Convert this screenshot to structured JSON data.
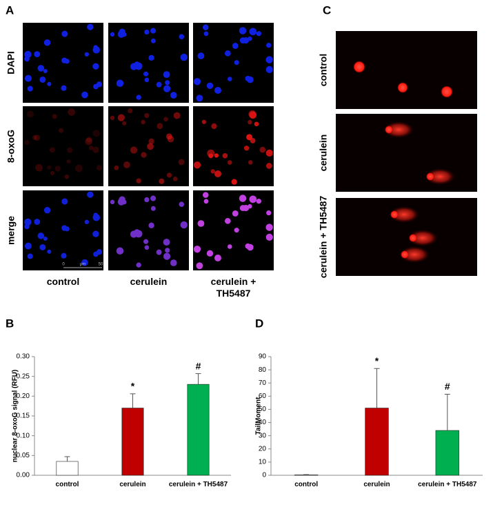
{
  "panel_letters": [
    "A",
    "B",
    "C",
    "D"
  ],
  "microscopy": {
    "row_labels": [
      "DAPI",
      "8-oxoG",
      "merge"
    ],
    "column_labels": [
      "control",
      "cerulein",
      "cerulein + TH5487"
    ],
    "scale_bar": [
      "0",
      "μm",
      "50"
    ]
  },
  "comet": {
    "row_labels": [
      "control",
      "cerulein",
      "cerulein + TH5487"
    ]
  },
  "chart_data": [
    {
      "type": "bar",
      "y_label": "nuclear 8-oxoG signal (RFU)",
      "categories": [
        "control",
        "cerulein",
        "cerulein + TH5487"
      ],
      "values": [
        0.035,
        0.17,
        0.23
      ],
      "errors": [
        0.012,
        0.036,
        0.027
      ],
      "annotations": [
        null,
        "*",
        "#"
      ],
      "colors": [
        "#ffffff",
        "#c00000",
        "#00b050"
      ],
      "ylim": [
        0,
        0.3
      ],
      "yticks": [
        {
          "value": 0,
          "label": "0.00"
        },
        {
          "value": 0.05,
          "label": "0.05"
        },
        {
          "value": 0.1,
          "label": "0.10"
        },
        {
          "value": 0.15,
          "label": "0.15"
        },
        {
          "value": 0.2,
          "label": "0.20"
        },
        {
          "value": 0.25,
          "label": "0.25"
        },
        {
          "value": 0.3,
          "label": "0.30"
        }
      ]
    },
    {
      "type": "bar",
      "y_label": "TailMoment",
      "categories": [
        "control",
        "cerulein",
        "cerulein + TH5487"
      ],
      "values": [
        0.3,
        51,
        34
      ],
      "errors": [
        0.2,
        30,
        27.5
      ],
      "annotations": [
        null,
        "*",
        "#"
      ],
      "colors": [
        "#ffffff",
        "#c00000",
        "#00b050"
      ],
      "ylim": [
        0,
        90
      ],
      "yticks": [
        0,
        10,
        20,
        30,
        40,
        50,
        60,
        70,
        80,
        90
      ]
    }
  ]
}
